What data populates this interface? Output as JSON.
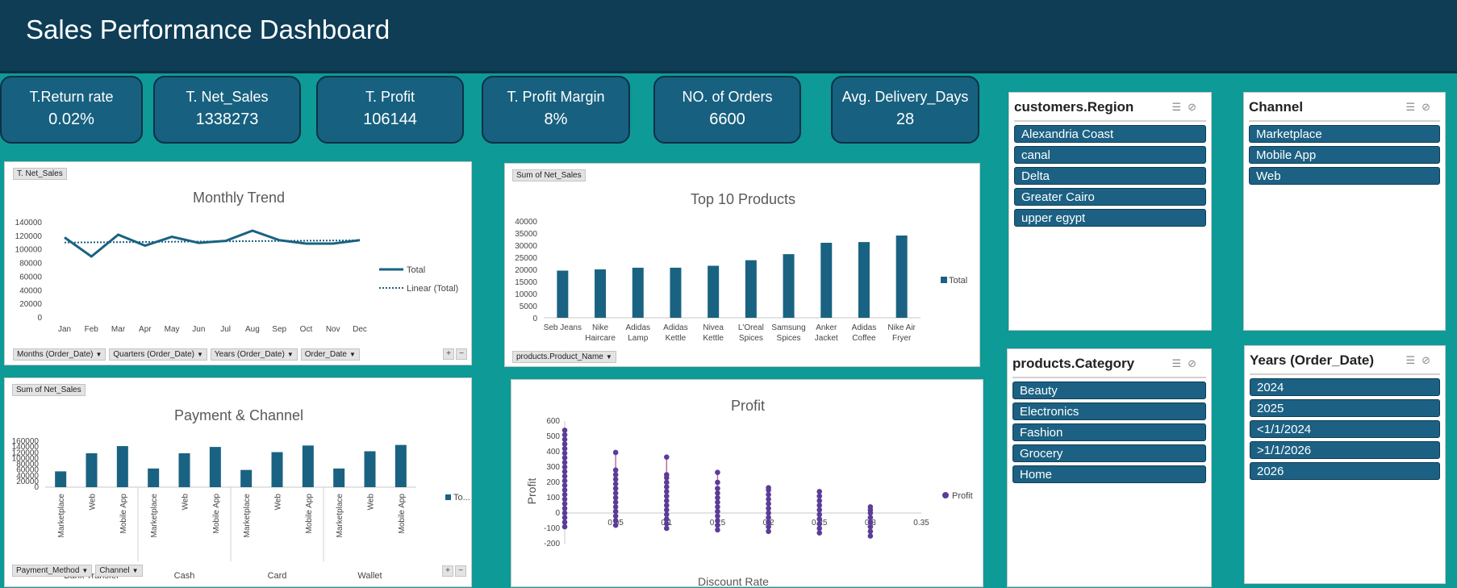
{
  "header": {
    "title": "Sales Performance Dashboard"
  },
  "kpis": [
    {
      "label": "T.Return rate",
      "value": "0.02%"
    },
    {
      "label": "T. Net_Sales",
      "value": "1338273"
    },
    {
      "label": "T. Profit",
      "value": "106144"
    },
    {
      "label": "T. Profit Margin",
      "value": "8%"
    },
    {
      "label": "NO. of Orders",
      "value": "6600"
    },
    {
      "label": "Avg. Delivery_Days",
      "value": "28"
    }
  ],
  "monthly": {
    "tag": "T. Net_Sales",
    "filters": [
      "Months (Order_Date)",
      "Quarters (Order_Date)",
      "Years (Order_Date)",
      "Order_Date"
    ]
  },
  "products": {
    "tag": "Sum of Net_Sales",
    "filter": "products.Product_Name"
  },
  "payment": {
    "tag": "Sum of Net_Sales",
    "filters": [
      "Payment_Method",
      "Channel"
    ]
  },
  "slicers": {
    "region": {
      "title": "customers.Region",
      "items": [
        "Alexandria Coast",
        "canal",
        "Delta",
        "Greater Cairo",
        "upper egypt"
      ]
    },
    "channel": {
      "title": "Channel",
      "items": [
        "Marketplace",
        "Mobile App",
        "Web"
      ]
    },
    "category": {
      "title": "products.Category",
      "items": [
        "Beauty",
        "Electronics",
        "Fashion",
        "Grocery",
        "Home"
      ]
    },
    "years": {
      "title": "Years (Order_Date)",
      "items": [
        "2024",
        "2025",
        "<1/1/2024",
        ">1/1/2026",
        "2026"
      ]
    }
  },
  "colors": {
    "bar": "#1a6282",
    "header": "#0f3d56",
    "background": "#0e9a96",
    "scatter": "#5b3c97"
  },
  "chart_data": [
    {
      "type": "line",
      "title": "Monthly Trend",
      "categories": [
        "Jan",
        "Feb",
        "Mar",
        "Apr",
        "May",
        "Jun",
        "Jul",
        "Aug",
        "Sep",
        "Oct",
        "Nov",
        "Dec"
      ],
      "series": [
        {
          "name": "Total",
          "values": [
            117000,
            89000,
            121000,
            105000,
            118000,
            109000,
            112000,
            127000,
            113000,
            108000,
            108000,
            113000
          ]
        },
        {
          "name": "Linear (Total)",
          "values": [
            109500,
            109800,
            110100,
            110400,
            110700,
            111000,
            111300,
            111600,
            111900,
            112200,
            112500,
            112800
          ]
        }
      ],
      "yticks": [
        0,
        20000,
        40000,
        60000,
        80000,
        100000,
        120000,
        140000
      ],
      "ylim": [
        0,
        140000
      ]
    },
    {
      "type": "bar",
      "title": "Top 10 Products",
      "categories": [
        [
          "Seb Jeans"
        ],
        [
          "Nike",
          "Haircare"
        ],
        [
          "Adidas",
          "Lamp"
        ],
        [
          "Adidas",
          "Kettle"
        ],
        [
          "Nivea",
          "Kettle"
        ],
        [
          "L'Oreal",
          "Spices"
        ],
        [
          "Samsung",
          "Spices"
        ],
        [
          "Anker",
          "Jacket"
        ],
        [
          "Adidas",
          "Coffee"
        ],
        [
          "Nike Air",
          "Fryer"
        ]
      ],
      "series": [
        {
          "name": "Total",
          "values": [
            19500,
            20000,
            20700,
            20700,
            21500,
            23800,
            26300,
            31000,
            31300,
            34000
          ]
        }
      ],
      "yticks": [
        0,
        5000,
        10000,
        15000,
        20000,
        25000,
        30000,
        35000,
        40000
      ],
      "ylim": [
        0,
        40000
      ]
    },
    {
      "type": "bar",
      "title": "Payment & Channel",
      "groups": [
        "Bank Transfer",
        "Cash",
        "Card",
        "Wallet"
      ],
      "subcategories": [
        "Marketplace",
        "Web",
        "Mobile App"
      ],
      "series": [
        {
          "name": "To...",
          "values": [
            [
              55000,
              118000,
              143000
            ],
            [
              65000,
              118000,
              140000
            ],
            [
              60000,
              122000,
              145000
            ],
            [
              65000,
              125000,
              147000
            ]
          ]
        }
      ],
      "yticks": [
        0,
        20000,
        40000,
        60000,
        80000,
        100000,
        120000,
        140000,
        160000
      ],
      "ylim": [
        0,
        160000
      ]
    },
    {
      "type": "scatter",
      "title": "Profit",
      "xlabel": "Discount Rate",
      "ylabel": "Profit",
      "legend": "Profit",
      "xticks": [
        0,
        0.05,
        0.1,
        0.15,
        0.2,
        0.25,
        0.3,
        0.35
      ],
      "yticks": [
        -200,
        -100,
        0,
        100,
        200,
        300,
        400,
        500,
        600
      ],
      "xlim": [
        0,
        0.35
      ],
      "ylim": [
        -200,
        600
      ],
      "points": [
        [
          0,
          -90
        ],
        [
          0,
          -60
        ],
        [
          0,
          -30
        ],
        [
          0,
          0
        ],
        [
          0,
          30
        ],
        [
          0,
          60
        ],
        [
          0,
          90
        ],
        [
          0,
          120
        ],
        [
          0,
          150
        ],
        [
          0,
          180
        ],
        [
          0,
          210
        ],
        [
          0,
          240
        ],
        [
          0,
          270
        ],
        [
          0,
          300
        ],
        [
          0,
          330
        ],
        [
          0,
          360
        ],
        [
          0,
          390
        ],
        [
          0,
          420
        ],
        [
          0,
          450
        ],
        [
          0,
          480
        ],
        [
          0,
          510
        ],
        [
          0,
          540
        ],
        [
          0.05,
          -80
        ],
        [
          0.05,
          -50
        ],
        [
          0.05,
          -20
        ],
        [
          0.05,
          10
        ],
        [
          0.05,
          40
        ],
        [
          0.05,
          70
        ],
        [
          0.05,
          100
        ],
        [
          0.05,
          130
        ],
        [
          0.05,
          160
        ],
        [
          0.05,
          190
        ],
        [
          0.05,
          220
        ],
        [
          0.05,
          250
        ],
        [
          0.05,
          280
        ],
        [
          0.05,
          395
        ],
        [
          0.1,
          -100
        ],
        [
          0.1,
          -70
        ],
        [
          0.1,
          -40
        ],
        [
          0.1,
          -10
        ],
        [
          0.1,
          20
        ],
        [
          0.1,
          50
        ],
        [
          0.1,
          80
        ],
        [
          0.1,
          110
        ],
        [
          0.1,
          140
        ],
        [
          0.1,
          170
        ],
        [
          0.1,
          200
        ],
        [
          0.1,
          230
        ],
        [
          0.1,
          250
        ],
        [
          0.1,
          365
        ],
        [
          0.15,
          -110
        ],
        [
          0.15,
          -80
        ],
        [
          0.15,
          -50
        ],
        [
          0.15,
          -20
        ],
        [
          0.15,
          10
        ],
        [
          0.15,
          40
        ],
        [
          0.15,
          70
        ],
        [
          0.15,
          100
        ],
        [
          0.15,
          130
        ],
        [
          0.15,
          160
        ],
        [
          0.15,
          200
        ],
        [
          0.15,
          265
        ],
        [
          0.2,
          -120
        ],
        [
          0.2,
          -90
        ],
        [
          0.2,
          -60
        ],
        [
          0.2,
          -30
        ],
        [
          0.2,
          0
        ],
        [
          0.2,
          30
        ],
        [
          0.2,
          60
        ],
        [
          0.2,
          90
        ],
        [
          0.2,
          120
        ],
        [
          0.2,
          150
        ],
        [
          0.2,
          165
        ],
        [
          0.25,
          -130
        ],
        [
          0.25,
          -100
        ],
        [
          0.25,
          -70
        ],
        [
          0.25,
          -40
        ],
        [
          0.25,
          -10
        ],
        [
          0.25,
          20
        ],
        [
          0.25,
          50
        ],
        [
          0.25,
          80
        ],
        [
          0.25,
          110
        ],
        [
          0.25,
          140
        ],
        [
          0.3,
          -150
        ],
        [
          0.3,
          -120
        ],
        [
          0.3,
          -90
        ],
        [
          0.3,
          -60
        ],
        [
          0.3,
          -30
        ],
        [
          0.3,
          0
        ],
        [
          0.3,
          20
        ],
        [
          0.3,
          40
        ]
      ]
    }
  ]
}
